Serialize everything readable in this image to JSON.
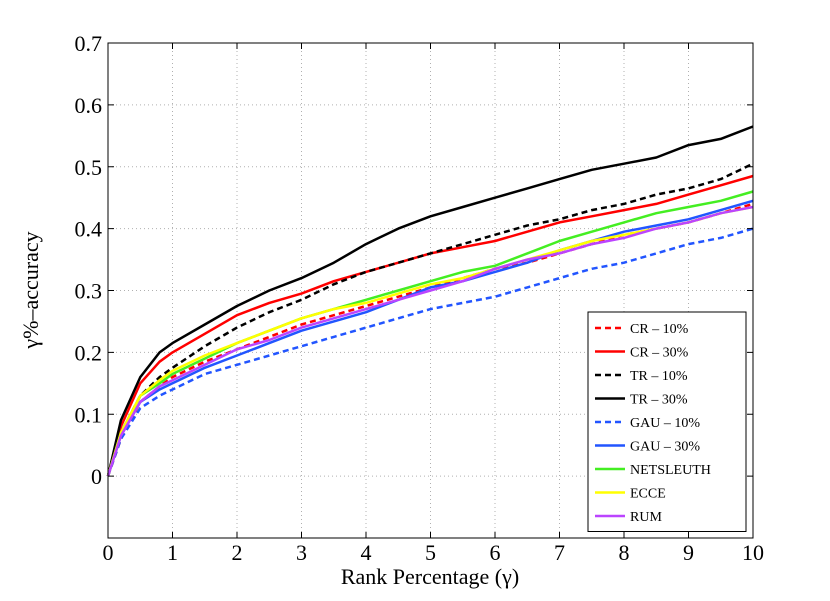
{
  "chart_data": {
    "type": "line",
    "title": "",
    "xlabel": "Rank Percentage (γ)",
    "ylabel": "γ%–accuracy",
    "xlim": [
      0,
      10
    ],
    "ylim": [
      -0.1,
      0.7
    ],
    "xticks": [
      "0",
      "1",
      "2",
      "3",
      "4",
      "5",
      "6",
      "7",
      "8",
      "9",
      "10"
    ],
    "yticks": [
      "0",
      "0.1",
      "0.2",
      "0.3",
      "0.4",
      "0.5",
      "0.6",
      "0.7"
    ],
    "grid": true,
    "legend_position": "bottom-right",
    "x": [
      0,
      0.2,
      0.5,
      0.8,
      1,
      1.5,
      2,
      2.5,
      3,
      3.5,
      4,
      4.5,
      5,
      5.5,
      6,
      6.5,
      7,
      7.5,
      8,
      8.5,
      9,
      9.5,
      10
    ],
    "series": [
      {
        "name": "CR – 10%",
        "color": "#ff0000",
        "dash": true,
        "values": [
          0,
          0.06,
          0.12,
          0.145,
          0.16,
          0.185,
          0.205,
          0.225,
          0.245,
          0.26,
          0.275,
          0.29,
          0.305,
          0.32,
          0.335,
          0.345,
          0.36,
          0.375,
          0.39,
          0.4,
          0.41,
          0.425,
          0.44
        ]
      },
      {
        "name": "CR – 30%",
        "color": "#ff0000",
        "dash": false,
        "values": [
          0,
          0.08,
          0.15,
          0.185,
          0.2,
          0.23,
          0.26,
          0.28,
          0.295,
          0.315,
          0.33,
          0.345,
          0.36,
          0.37,
          0.38,
          0.395,
          0.41,
          0.42,
          0.43,
          0.44,
          0.455,
          0.47,
          0.485
        ]
      },
      {
        "name": "TR – 10%",
        "color": "#000000",
        "dash": true,
        "values": [
          0,
          0.07,
          0.13,
          0.16,
          0.175,
          0.21,
          0.24,
          0.265,
          0.285,
          0.31,
          0.33,
          0.345,
          0.36,
          0.375,
          0.39,
          0.405,
          0.415,
          0.43,
          0.44,
          0.455,
          0.465,
          0.48,
          0.505
        ]
      },
      {
        "name": "TR – 30%",
        "color": "#000000",
        "dash": false,
        "values": [
          0,
          0.09,
          0.16,
          0.2,
          0.215,
          0.245,
          0.275,
          0.3,
          0.32,
          0.345,
          0.375,
          0.4,
          0.42,
          0.435,
          0.45,
          0.465,
          0.48,
          0.495,
          0.505,
          0.515,
          0.535,
          0.545,
          0.565
        ]
      },
      {
        "name": "GAU – 10%",
        "color": "#2255ff",
        "dash": true,
        "values": [
          0,
          0.06,
          0.11,
          0.13,
          0.14,
          0.165,
          0.18,
          0.195,
          0.21,
          0.225,
          0.24,
          0.255,
          0.27,
          0.28,
          0.29,
          0.305,
          0.32,
          0.335,
          0.345,
          0.36,
          0.375,
          0.385,
          0.4
        ]
      },
      {
        "name": "GAU – 30%",
        "color": "#2255ff",
        "dash": false,
        "values": [
          0,
          0.065,
          0.12,
          0.14,
          0.15,
          0.175,
          0.195,
          0.215,
          0.235,
          0.25,
          0.265,
          0.285,
          0.305,
          0.315,
          0.33,
          0.345,
          0.365,
          0.38,
          0.395,
          0.405,
          0.415,
          0.43,
          0.445
        ]
      },
      {
        "name": "NETSLEUTH",
        "color": "#44ee22",
        "dash": false,
        "values": [
          0,
          0.07,
          0.13,
          0.15,
          0.165,
          0.19,
          0.215,
          0.235,
          0.255,
          0.27,
          0.285,
          0.3,
          0.315,
          0.33,
          0.34,
          0.36,
          0.38,
          0.395,
          0.41,
          0.425,
          0.435,
          0.445,
          0.46
        ]
      },
      {
        "name": "ECCE",
        "color": "#ffff00",
        "dash": false,
        "values": [
          0,
          0.07,
          0.13,
          0.155,
          0.17,
          0.195,
          0.215,
          0.235,
          0.255,
          0.27,
          0.28,
          0.295,
          0.31,
          0.32,
          0.335,
          0.35,
          0.365,
          0.38,
          0.39,
          0.4,
          0.41,
          0.425,
          0.435
        ]
      },
      {
        "name": "RUM",
        "color": "#bb44ff",
        "dash": false,
        "values": [
          0,
          0.065,
          0.12,
          0.145,
          0.155,
          0.18,
          0.205,
          0.22,
          0.24,
          0.255,
          0.27,
          0.285,
          0.3,
          0.315,
          0.335,
          0.35,
          0.36,
          0.375,
          0.385,
          0.4,
          0.41,
          0.425,
          0.435
        ]
      }
    ]
  }
}
